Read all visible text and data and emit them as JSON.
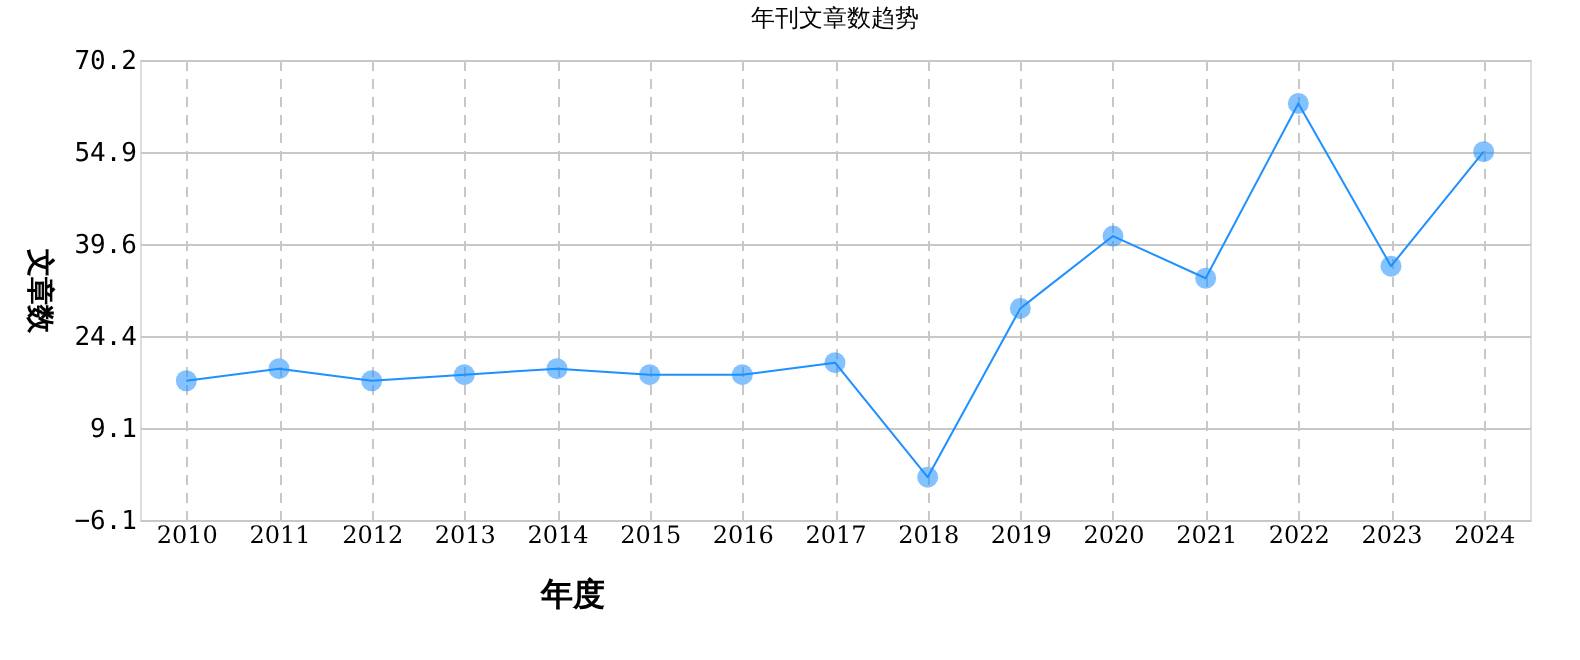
{
  "chart_data": {
    "type": "line",
    "title": "年刊文章数趋势",
    "xlabel": "年度",
    "ylabel": "文章数",
    "categories": [
      "2010",
      "2011",
      "2012",
      "2013",
      "2014",
      "2015",
      "2016",
      "2017",
      "2018",
      "2019",
      "2020",
      "2021",
      "2022",
      "2023",
      "2024"
    ],
    "series": [
      {
        "color": "#1e90ff",
        "values": [
          17,
          19,
          17,
          18,
          19,
          18,
          18,
          20,
          1,
          29,
          41,
          34,
          63,
          36,
          55
        ]
      }
    ],
    "ylim": [
      -6.1,
      70.2
    ],
    "yticks": [
      -6.1,
      9.1,
      24.4,
      39.6,
      54.9,
      70.2
    ],
    "grid": true,
    "marker": "circle",
    "line_style": "solid",
    "legend": false
  }
}
